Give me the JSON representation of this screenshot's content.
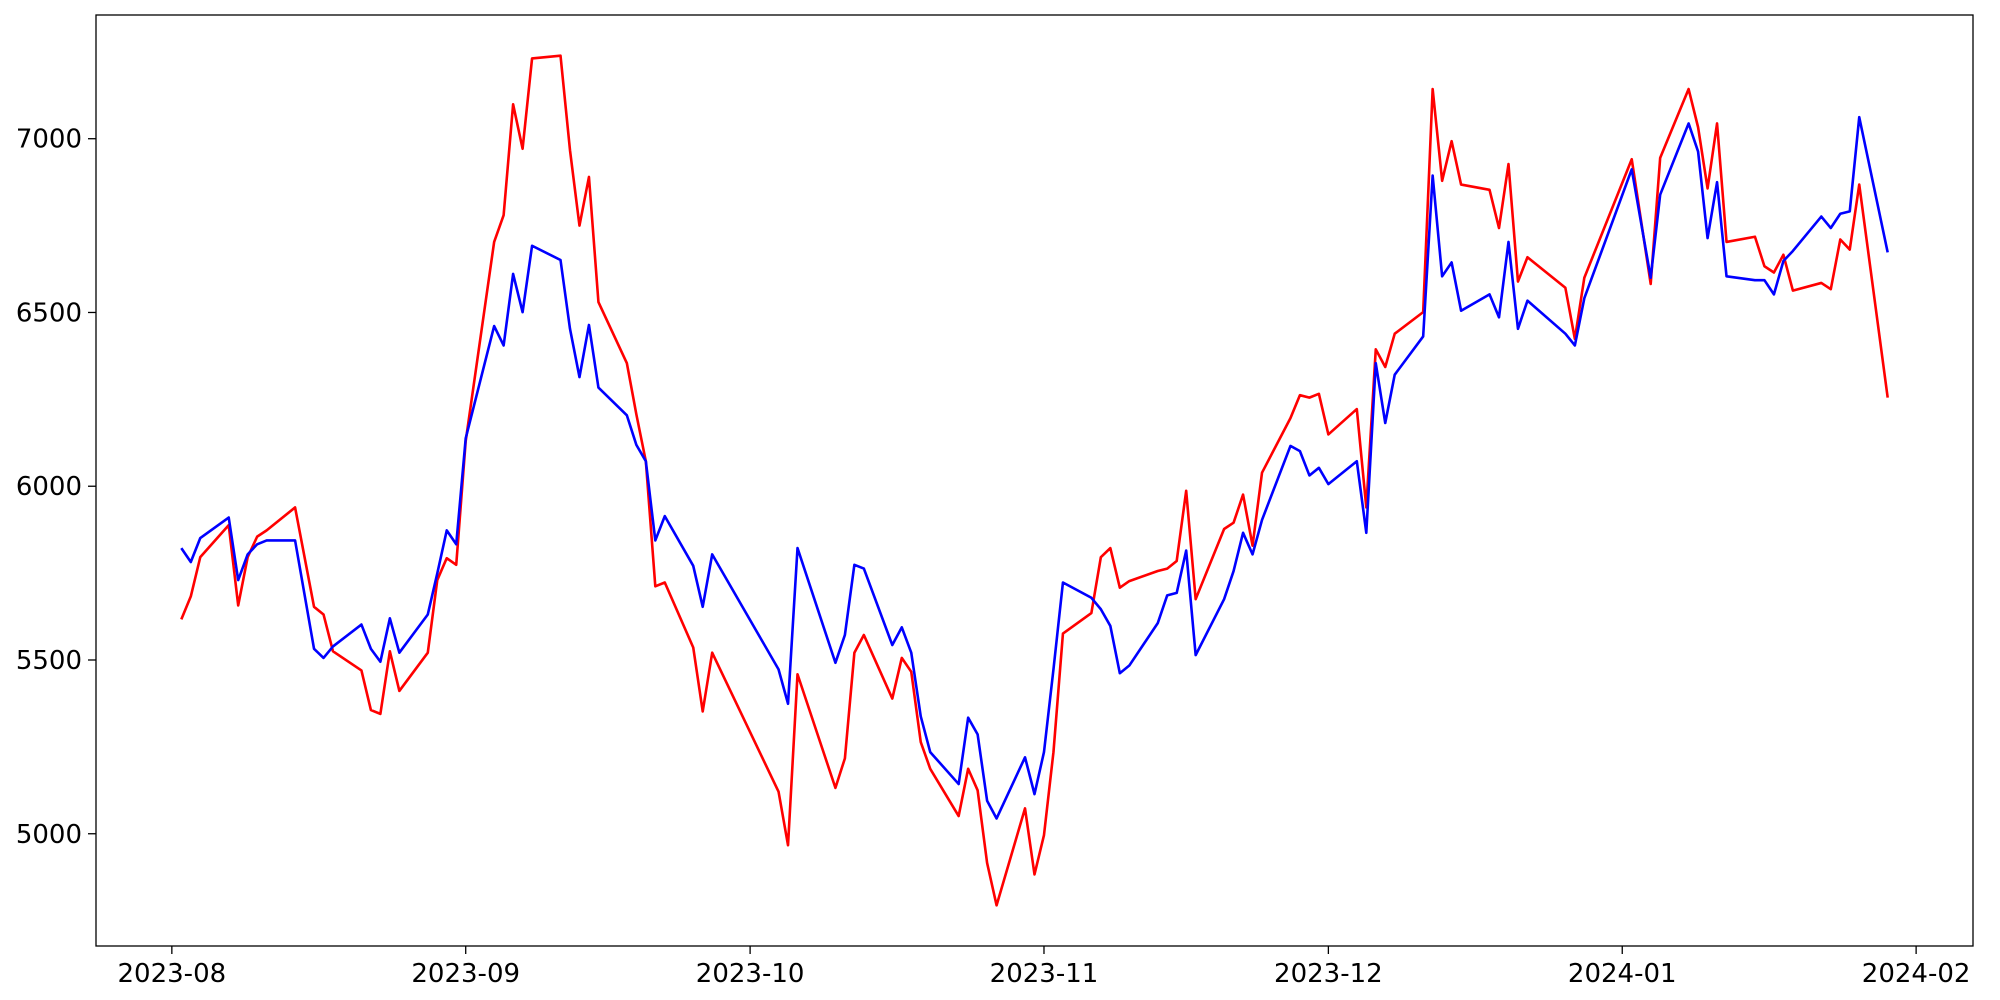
{
  "chart_data": {
    "type": "line",
    "x": [
      1,
      2,
      3,
      6,
      7,
      8,
      9,
      10,
      13,
      15,
      16,
      17,
      20,
      21,
      22,
      23,
      24,
      27,
      28,
      29,
      30,
      31,
      34,
      35,
      36,
      37,
      38,
      41,
      42,
      43,
      44,
      45,
      48,
      49,
      50,
      51,
      52,
      55,
      56,
      57,
      64,
      65,
      66,
      70,
      71,
      72,
      73,
      76,
      77,
      78,
      79,
      80,
      83,
      84,
      85,
      86,
      87,
      90,
      91,
      92,
      93,
      94,
      97,
      98,
      99,
      100,
      101,
      104,
      105,
      106,
      107,
      108,
      111,
      112,
      113,
      114,
      115,
      118,
      119,
      120,
      121,
      122,
      125,
      126,
      127,
      128,
      129,
      132,
      133,
      134,
      135,
      136,
      139,
      140,
      141,
      142,
      143,
      147,
      148,
      149,
      154,
      156,
      157,
      160,
      161,
      162,
      163,
      164,
      167,
      168,
      169,
      170,
      171,
      174,
      175,
      176,
      177,
      178,
      181
    ],
    "series": [
      {
        "color": "#ff0000",
        "values": [
          5617,
          5683,
          5796,
          5888,
          5657,
          5796,
          5855,
          5873,
          5939,
          5653,
          5631,
          5525,
          5470,
          5356,
          5345,
          5525,
          5411,
          5521,
          5730,
          5793,
          5774,
          6130,
          6703,
          6780,
          7099,
          6971,
          7231,
          7239,
          6967,
          6750,
          6890,
          6530,
          6354,
          6207,
          6072,
          5712,
          5723,
          5536,
          5352,
          5521,
          5121,
          4967,
          5459,
          5132,
          5217,
          5521,
          5572,
          5389,
          5506,
          5466,
          5264,
          5187,
          5051,
          5187,
          5125,
          4916,
          4794,
          5073,
          4883,
          4996,
          5235,
          5576,
          5635,
          5796,
          5822,
          5708,
          5727,
          5756,
          5763,
          5785,
          5987,
          5675,
          5877,
          5895,
          5976,
          5829,
          6039,
          6196,
          6262,
          6255,
          6266,
          6149,
          6222,
          5939,
          6394,
          6343,
          6439,
          6501,
          7143,
          6879,
          6993,
          6868,
          6853,
          6743,
          6927,
          6589,
          6659,
          6571,
          6424,
          6600,
          6941,
          6582,
          6945,
          7143,
          7033,
          6857,
          7044,
          6703,
          6718,
          6633,
          6615,
          6666,
          6563,
          6585,
          6567,
          6710,
          6681,
          6868,
          6255
        ]
      },
      {
        "color": "#0000ff",
        "values": [
          5822,
          5782,
          5851,
          5910,
          5730,
          5804,
          5833,
          5844,
          5844,
          5532,
          5506,
          5539,
          5602,
          5532,
          5495,
          5620,
          5521,
          5631,
          5749,
          5873,
          5833,
          6138,
          6461,
          6405,
          6611,
          6501,
          6692,
          6651,
          6453,
          6314,
          6464,
          6284,
          6204,
          6119,
          6072,
          5844,
          5914,
          5771,
          5653,
          5804,
          5473,
          5374,
          5822,
          5492,
          5572,
          5774,
          5763,
          5543,
          5594,
          5521,
          5338,
          5235,
          5143,
          5334,
          5286,
          5095,
          5044,
          5220,
          5114,
          5235,
          5473,
          5723,
          5679,
          5646,
          5598,
          5462,
          5484,
          5606,
          5686,
          5693,
          5815,
          5514,
          5675,
          5756,
          5866,
          5804,
          5903,
          6116,
          6101,
          6031,
          6053,
          6006,
          6072,
          5866,
          6354,
          6182,
          6321,
          6431,
          6894,
          6604,
          6644,
          6505,
          6552,
          6486,
          6703,
          6453,
          6534,
          6439,
          6405,
          6541,
          6912,
          6600,
          6839,
          7044,
          6963,
          6714,
          6875,
          6604,
          6593,
          6593,
          6552,
          6648,
          6677,
          6776,
          6743,
          6784,
          6791,
          7062,
          6673
        ]
      }
    ],
    "xlim": [
      -8,
      190
    ],
    "xticks": [
      {
        "value": 0,
        "label": "2023-08"
      },
      {
        "value": 31,
        "label": "2023-09"
      },
      {
        "value": 61,
        "label": "2023-10"
      },
      {
        "value": 92,
        "label": "2023-11"
      },
      {
        "value": 122,
        "label": "2023-12"
      },
      {
        "value": 153,
        "label": "2024-01"
      },
      {
        "value": 184,
        "label": "2024-02"
      }
    ],
    "ylim": [
      4677,
      7356
    ],
    "yticks": [
      5000,
      5500,
      6000,
      6500,
      7000
    ],
    "grid": false
  }
}
